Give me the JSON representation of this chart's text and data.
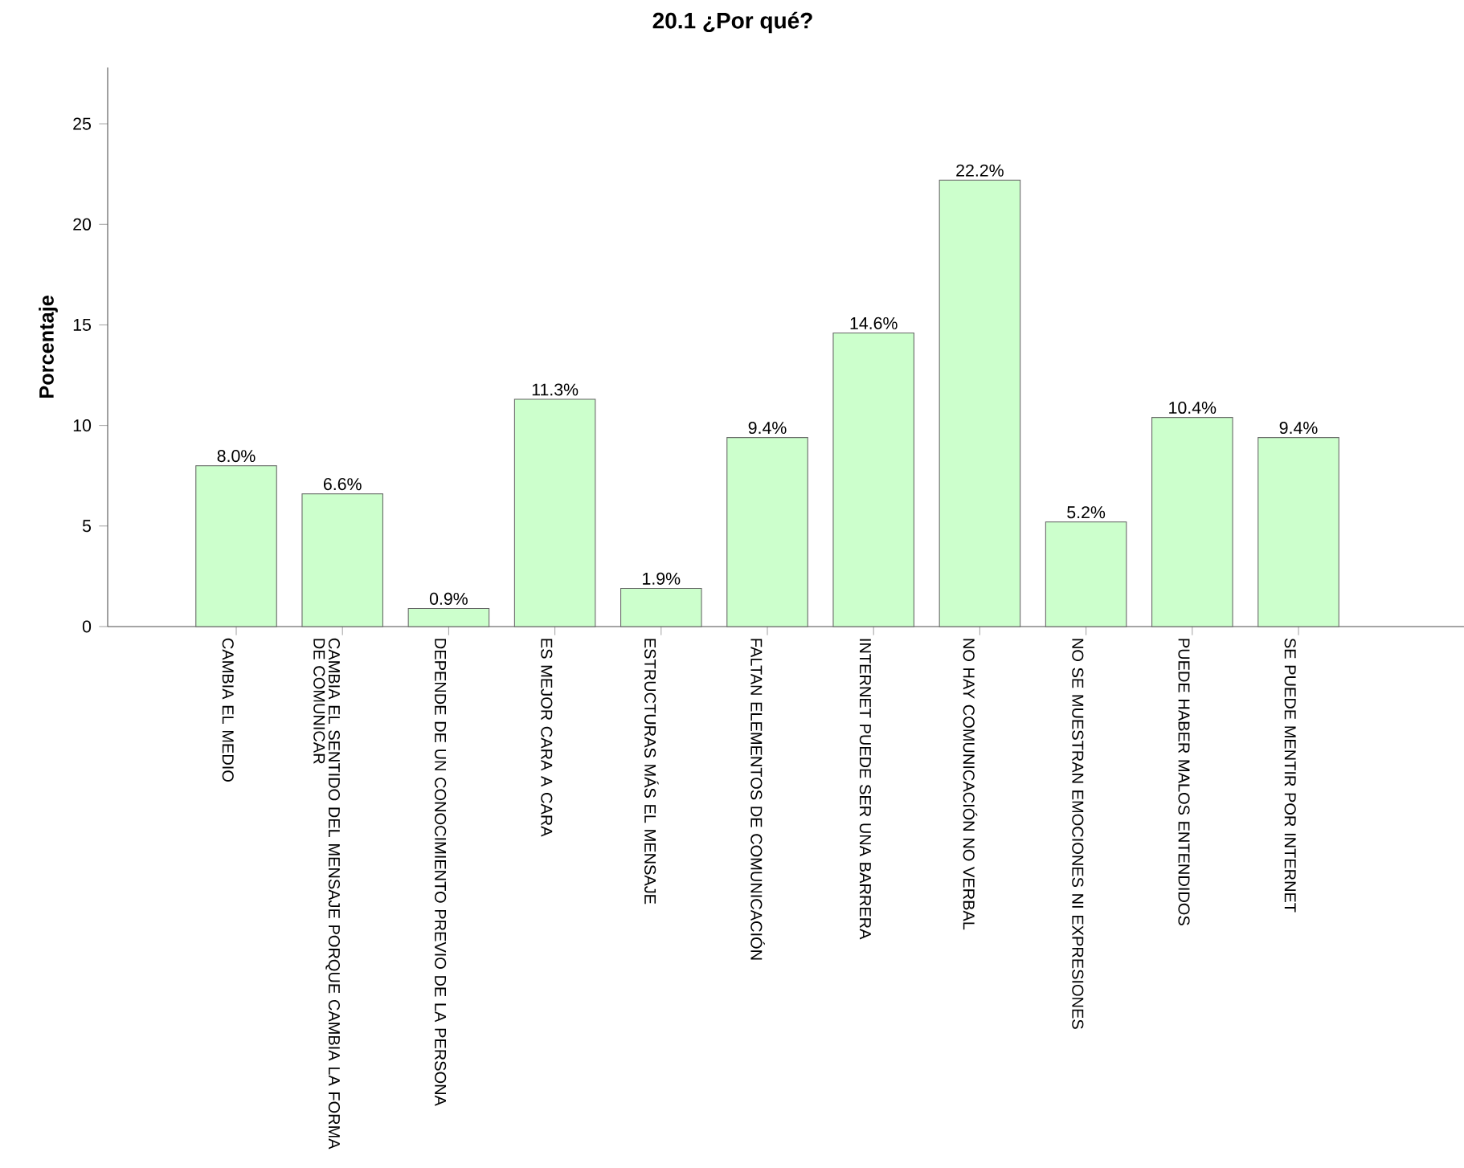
{
  "chart_data": {
    "type": "bar",
    "title": "20.1 ¿Por qué?",
    "ylabel": "Porcentaje",
    "categories": [
      "CAMBIA EL MEDIO",
      "CAMBIA EL SENTIDO DEL MENSAJE PORQUE CAMBIA LA FORMA DE COMUNICAR",
      "DEPENDE DE UN CONOCIMIENTO PREVIO DE LA PERSONA",
      "ES MEJOR CARA A CARA",
      "ESTRUCTURAS MÁS EL MENSAJE",
      "FALTAN ELEMENTOS DE COMUNICACIÓN",
      "INTERNET PUEDE SER UNA BARRERA",
      "NO HAY COMUNICACIÓN NO VERBAL",
      "NO SE MUESTRAN EMOCIONES NI EXPRESIONES",
      "PUEDE HABER MALOS ENTENDIDOS",
      "SE PUEDE MENTIR POR INTERNET"
    ],
    "values": [
      8.0,
      6.6,
      0.9,
      11.3,
      1.9,
      9.4,
      14.6,
      22.2,
      5.2,
      10.4,
      9.4
    ],
    "value_labels": [
      "8.0%",
      "6.6%",
      "0.9%",
      "11.3%",
      "1.9%",
      "9.4%",
      "14.6%",
      "22.2%",
      "5.2%",
      "10.4%",
      "9.4%"
    ],
    "color": "#ccffcc",
    "ylim": [
      0,
      27.8
    ],
    "yticks": [
      0,
      5,
      10,
      15,
      20,
      25
    ]
  }
}
